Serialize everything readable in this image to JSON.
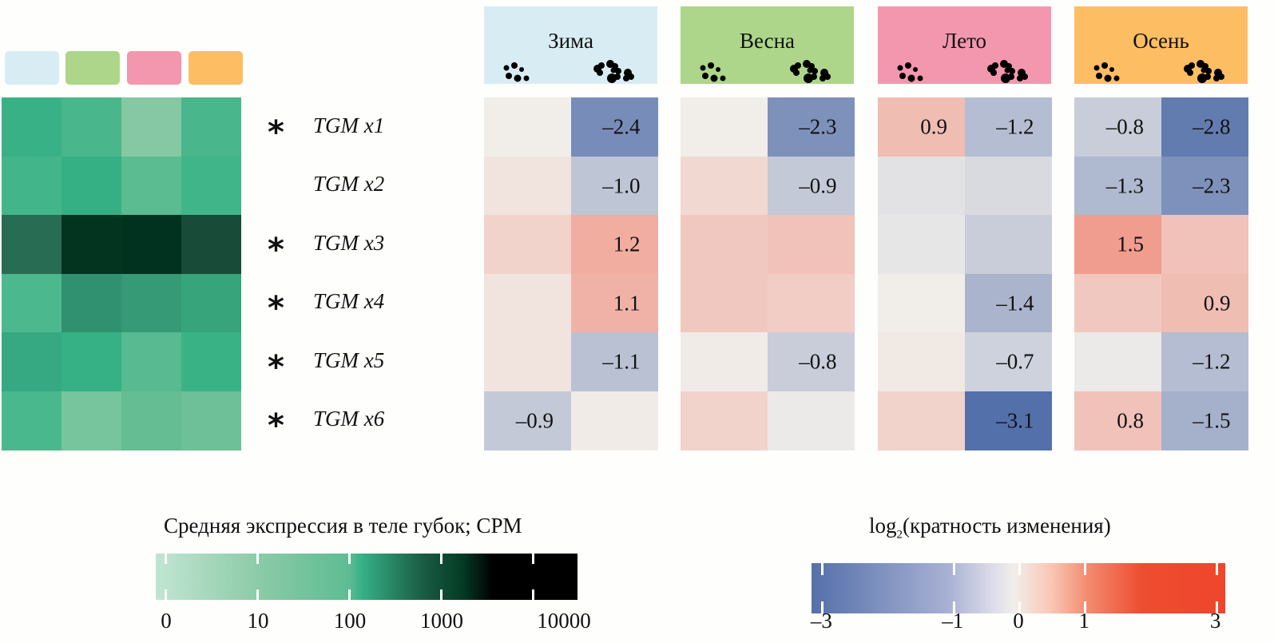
{
  "chart_data": [
    {
      "type": "heatmap",
      "title": "",
      "name": "mean-expression",
      "rows": [
        "TGM x1",
        "TGM x2",
        "TGM x3",
        "TGM x4",
        "TGM x5",
        "TGM x6"
      ],
      "columns": [
        "Зима",
        "Весна",
        "Лето",
        "Осень"
      ],
      "column_colors": [
        "#d8edf3",
        "#add68a",
        "#f397ae",
        "#fdbd63"
      ],
      "cell_colors": [
        [
          "#39b187",
          "#4ab68b",
          "#85c8a3",
          "#49b68b"
        ],
        [
          "#43b58b",
          "#35b085",
          "#5bbb91",
          "#40b58a"
        ],
        [
          "#286c53",
          "#023420",
          "#013220",
          "#184c38"
        ],
        [
          "#4bb98d",
          "#309170",
          "#369a76",
          "#37a47b"
        ],
        [
          "#36a983",
          "#36b085",
          "#57ba91",
          "#39b386"
        ],
        [
          "#4ab88d",
          "#77c59c",
          "#64bd93",
          "#6dc097"
        ]
      ],
      "legend": {
        "title": "Средняя экспрессия в теле губок; CPM",
        "ticks": [
          "0",
          "10",
          "100",
          "1000",
          "10000"
        ],
        "scale": "log"
      }
    },
    {
      "type": "heatmap",
      "name": "log2-fold-change",
      "rows": [
        "TGM x1",
        "TGM x2",
        "TGM x3",
        "TGM x4",
        "TGM x5",
        "TGM x6"
      ],
      "significant": [
        true,
        false,
        true,
        true,
        true,
        true
      ],
      "seasons": [
        {
          "name": "Зима",
          "color": "#d8edf3"
        },
        {
          "name": "Весна",
          "color": "#add68a"
        },
        {
          "name": "Лето",
          "color": "#f397ae"
        },
        {
          "name": "Осень",
          "color": "#fdbd63"
        }
      ],
      "subcolumns": [
        "dispersed-cells",
        "aggregates"
      ],
      "values": [
        [
          [
            0.0,
            -2.4
          ],
          [
            0.0,
            -2.3
          ],
          [
            0.9,
            -1.2
          ],
          [
            -0.8,
            -2.8
          ]
        ],
        [
          [
            0.2,
            -1.0
          ],
          [
            0.4,
            -0.9
          ],
          [
            -0.3,
            -0.5
          ],
          [
            -1.3,
            -2.3
          ]
        ],
        [
          [
            0.5,
            1.2
          ],
          [
            0.7,
            0.8
          ],
          [
            -0.2,
            -0.8
          ],
          [
            1.5,
            0.8
          ]
        ],
        [
          [
            0.2,
            1.1
          ],
          [
            0.7,
            0.6
          ],
          [
            0.0,
            -1.4
          ],
          [
            0.7,
            0.9
          ]
        ],
        [
          [
            0.2,
            -1.1
          ],
          [
            0.05,
            -0.8
          ],
          [
            0.1,
            -0.7
          ],
          [
            -0.1,
            -1.2
          ]
        ],
        [
          [
            -0.9,
            0.05
          ],
          [
            0.5,
            -0.1
          ],
          [
            0.5,
            -3.1
          ],
          [
            0.8,
            -1.5
          ]
        ]
      ],
      "labels": [
        [
          [
            "",
            "–2.4"
          ],
          [
            "",
            "–2.3"
          ],
          [
            "0.9",
            "–1.2"
          ],
          [
            "–0.8",
            "–2.8"
          ]
        ],
        [
          [
            "",
            "–1.0"
          ],
          [
            "",
            "–0.9"
          ],
          [
            "",
            ""
          ],
          [
            "–1.3",
            "–2.3"
          ]
        ],
        [
          [
            "",
            "1.2"
          ],
          [
            "",
            ""
          ],
          [
            "",
            ""
          ],
          [
            "1.5",
            ""
          ]
        ],
        [
          [
            "",
            "1.1"
          ],
          [
            "",
            ""
          ],
          [
            "",
            "–1.4"
          ],
          [
            "",
            "0.9"
          ]
        ],
        [
          [
            "",
            "–1.1"
          ],
          [
            "",
            "–0.8"
          ],
          [
            "",
            "–0.7"
          ],
          [
            "",
            "–1.2"
          ]
        ],
        [
          [
            "–0.9",
            ""
          ],
          [
            "",
            ""
          ],
          [
            "",
            "–3.1"
          ],
          [
            "0.8",
            "–1.5"
          ]
        ]
      ],
      "legend": {
        "title_prefix": "log",
        "title_subscript": "2",
        "title_rest": "(кратность изменения)",
        "ticks": [
          "–3",
          "–1",
          "0",
          "1",
          "3"
        ],
        "tick_values": [
          -3,
          -1,
          0,
          1,
          3
        ],
        "range": [
          -3.15,
          3.15
        ],
        "low_color": "#5470aa",
        "mid_color": "#f1eeea",
        "high_color": "#ef452c"
      }
    }
  ],
  "star_symbol": "*"
}
